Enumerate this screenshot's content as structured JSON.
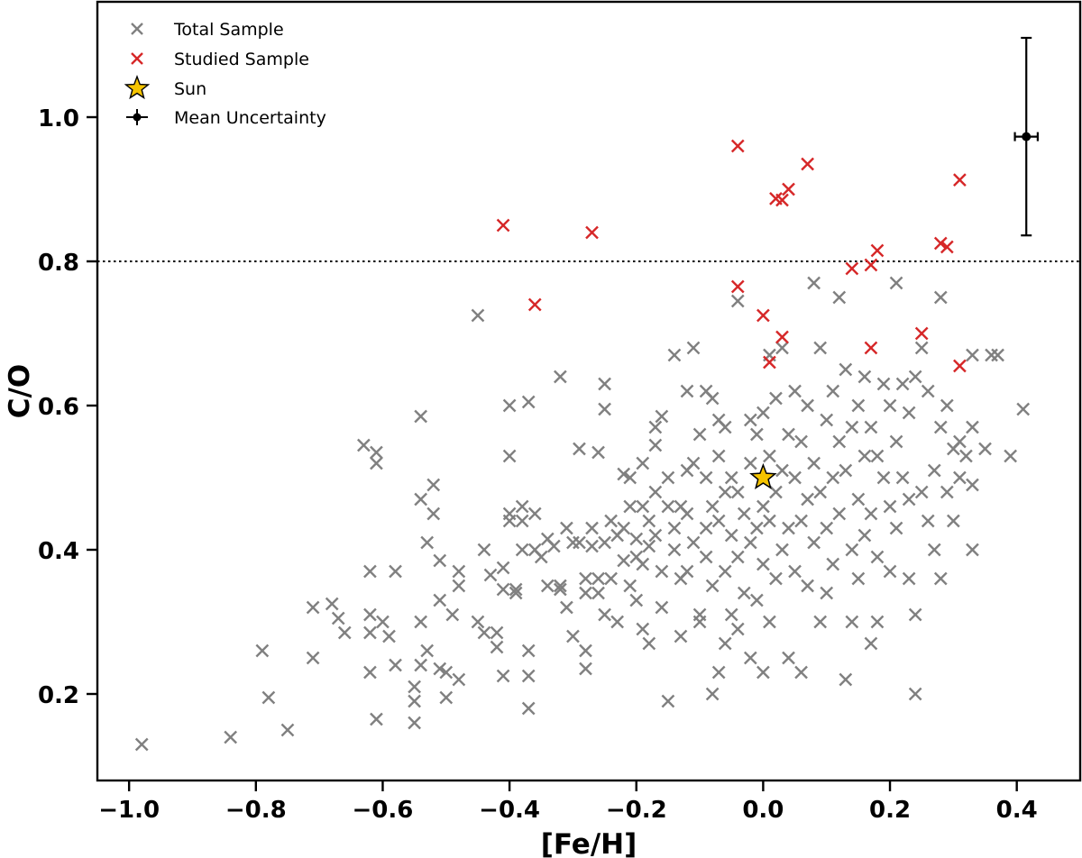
{
  "chart_data": {
    "type": "scatter",
    "xlabel": "[Fe/H]",
    "ylabel": "C/O",
    "xlim": [
      -1.05,
      0.5
    ],
    "ylim": [
      0.08,
      1.16
    ],
    "xticks": [
      -1.0,
      -0.8,
      -0.6,
      -0.4,
      -0.2,
      0.0,
      0.2,
      0.4
    ],
    "xtick_labels": [
      "−1.0",
      "−0.8",
      "−0.6",
      "−0.4",
      "−0.2",
      "0.0",
      "0.2",
      "0.4"
    ],
    "yticks": [
      0.2,
      0.4,
      0.6,
      0.8,
      1.0
    ],
    "ytick_labels": [
      "0.2",
      "0.4",
      "0.6",
      "0.8",
      "1.0"
    ],
    "grid": false,
    "legend_position": "top-left",
    "reference_line": {
      "y": 0.8,
      "style": "dotted"
    },
    "series": [
      {
        "name": "Total Sample",
        "marker": "x",
        "color": "#808080",
        "points": [
          [
            -0.98,
            0.13
          ],
          [
            -0.84,
            0.14
          ],
          [
            -0.79,
            0.26
          ],
          [
            -0.78,
            0.195
          ],
          [
            -0.75,
            0.15
          ],
          [
            -0.71,
            0.32
          ],
          [
            -0.71,
            0.25
          ],
          [
            -0.68,
            0.325
          ],
          [
            -0.67,
            0.305
          ],
          [
            -0.66,
            0.285
          ],
          [
            -0.63,
            0.545
          ],
          [
            -0.62,
            0.37
          ],
          [
            -0.62,
            0.31
          ],
          [
            -0.62,
            0.285
          ],
          [
            -0.62,
            0.23
          ],
          [
            -0.61,
            0.535
          ],
          [
            -0.61,
            0.52
          ],
          [
            -0.61,
            0.165
          ],
          [
            -0.6,
            0.3
          ],
          [
            -0.59,
            0.28
          ],
          [
            -0.58,
            0.37
          ],
          [
            -0.58,
            0.24
          ],
          [
            -0.55,
            0.19
          ],
          [
            -0.55,
            0.16
          ],
          [
            -0.55,
            0.21
          ],
          [
            -0.54,
            0.585
          ],
          [
            -0.54,
            0.47
          ],
          [
            -0.54,
            0.3
          ],
          [
            -0.54,
            0.24
          ],
          [
            -0.53,
            0.41
          ],
          [
            -0.53,
            0.26
          ],
          [
            -0.52,
            0.49
          ],
          [
            -0.52,
            0.45
          ],
          [
            -0.51,
            0.385
          ],
          [
            -0.51,
            0.33
          ],
          [
            -0.51,
            0.235
          ],
          [
            -0.5,
            0.23
          ],
          [
            -0.5,
            0.195
          ],
          [
            -0.49,
            0.31
          ],
          [
            -0.48,
            0.37
          ],
          [
            -0.48,
            0.35
          ],
          [
            -0.48,
            0.22
          ],
          [
            -0.45,
            0.725
          ],
          [
            -0.45,
            0.3
          ],
          [
            -0.44,
            0.4
          ],
          [
            -0.44,
            0.285
          ],
          [
            -0.43,
            0.365
          ],
          [
            -0.42,
            0.285
          ],
          [
            -0.42,
            0.265
          ],
          [
            -0.41,
            0.375
          ],
          [
            -0.41,
            0.345
          ],
          [
            -0.41,
            0.225
          ],
          [
            -0.4,
            0.6
          ],
          [
            -0.4,
            0.53
          ],
          [
            -0.4,
            0.45
          ],
          [
            -0.4,
            0.44
          ],
          [
            -0.39,
            0.345
          ],
          [
            -0.39,
            0.34
          ],
          [
            -0.38,
            0.46
          ],
          [
            -0.38,
            0.44
          ],
          [
            -0.38,
            0.4
          ],
          [
            -0.37,
            0.605
          ],
          [
            -0.37,
            0.26
          ],
          [
            -0.37,
            0.225
          ],
          [
            -0.37,
            0.18
          ],
          [
            -0.36,
            0.45
          ],
          [
            -0.36,
            0.4
          ],
          [
            -0.35,
            0.39
          ],
          [
            -0.34,
            0.415
          ],
          [
            -0.34,
            0.35
          ],
          [
            -0.33,
            0.405
          ],
          [
            -0.32,
            0.64
          ],
          [
            -0.32,
            0.35
          ],
          [
            -0.32,
            0.345
          ],
          [
            -0.31,
            0.43
          ],
          [
            -0.31,
            0.32
          ],
          [
            -0.3,
            0.41
          ],
          [
            -0.3,
            0.28
          ],
          [
            -0.29,
            0.54
          ],
          [
            -0.29,
            0.41
          ],
          [
            -0.28,
            0.36
          ],
          [
            -0.28,
            0.34
          ],
          [
            -0.28,
            0.26
          ],
          [
            -0.28,
            0.235
          ],
          [
            -0.27,
            0.43
          ],
          [
            -0.27,
            0.405
          ],
          [
            -0.26,
            0.535
          ],
          [
            -0.26,
            0.36
          ],
          [
            -0.26,
            0.34
          ],
          [
            -0.25,
            0.63
          ],
          [
            -0.25,
            0.595
          ],
          [
            -0.25,
            0.41
          ],
          [
            -0.25,
            0.31
          ],
          [
            -0.24,
            0.44
          ],
          [
            -0.24,
            0.36
          ],
          [
            -0.23,
            0.42
          ],
          [
            -0.23,
            0.3
          ],
          [
            -0.22,
            0.505
          ],
          [
            -0.22,
            0.43
          ],
          [
            -0.22,
            0.385
          ],
          [
            -0.21,
            0.5
          ],
          [
            -0.21,
            0.46
          ],
          [
            -0.21,
            0.35
          ],
          [
            -0.2,
            0.415
          ],
          [
            -0.2,
            0.39
          ],
          [
            -0.2,
            0.33
          ],
          [
            -0.19,
            0.52
          ],
          [
            -0.19,
            0.46
          ],
          [
            -0.19,
            0.38
          ],
          [
            -0.19,
            0.29
          ],
          [
            -0.18,
            0.44
          ],
          [
            -0.18,
            0.405
          ],
          [
            -0.18,
            0.27
          ],
          [
            -0.17,
            0.57
          ],
          [
            -0.17,
            0.545
          ],
          [
            -0.17,
            0.48
          ],
          [
            -0.17,
            0.42
          ],
          [
            -0.16,
            0.585
          ],
          [
            -0.16,
            0.37
          ],
          [
            -0.16,
            0.32
          ],
          [
            -0.15,
            0.5
          ],
          [
            -0.15,
            0.46
          ],
          [
            -0.15,
            0.19
          ],
          [
            -0.14,
            0.67
          ],
          [
            -0.14,
            0.43
          ],
          [
            -0.14,
            0.4
          ],
          [
            -0.13,
            0.46
          ],
          [
            -0.13,
            0.36
          ],
          [
            -0.13,
            0.28
          ],
          [
            -0.12,
            0.62
          ],
          [
            -0.12,
            0.51
          ],
          [
            -0.12,
            0.45
          ],
          [
            -0.12,
            0.37
          ],
          [
            -0.11,
            0.68
          ],
          [
            -0.11,
            0.52
          ],
          [
            -0.11,
            0.41
          ],
          [
            -0.1,
            0.56
          ],
          [
            -0.1,
            0.31
          ],
          [
            -0.1,
            0.3
          ],
          [
            -0.09,
            0.62
          ],
          [
            -0.09,
            0.5
          ],
          [
            -0.09,
            0.43
          ],
          [
            -0.09,
            0.39
          ],
          [
            -0.08,
            0.61
          ],
          [
            -0.08,
            0.46
          ],
          [
            -0.08,
            0.35
          ],
          [
            -0.08,
            0.2
          ],
          [
            -0.07,
            0.58
          ],
          [
            -0.07,
            0.53
          ],
          [
            -0.07,
            0.44
          ],
          [
            -0.07,
            0.23
          ],
          [
            -0.06,
            0.57
          ],
          [
            -0.06,
            0.48
          ],
          [
            -0.06,
            0.37
          ],
          [
            -0.06,
            0.27
          ],
          [
            -0.05,
            0.5
          ],
          [
            -0.05,
            0.42
          ],
          [
            -0.05,
            0.31
          ],
          [
            -0.04,
            0.745
          ],
          [
            -0.04,
            0.48
          ],
          [
            -0.04,
            0.39
          ],
          [
            -0.04,
            0.29
          ],
          [
            -0.03,
            0.45
          ],
          [
            -0.03,
            0.34
          ],
          [
            -0.02,
            0.58
          ],
          [
            -0.02,
            0.52
          ],
          [
            -0.02,
            0.41
          ],
          [
            -0.02,
            0.25
          ],
          [
            -0.01,
            0.56
          ],
          [
            -0.01,
            0.43
          ],
          [
            -0.01,
            0.33
          ],
          [
            0.0,
            0.59
          ],
          [
            0.0,
            0.46
          ],
          [
            0.0,
            0.38
          ],
          [
            0.0,
            0.23
          ],
          [
            0.01,
            0.67
          ],
          [
            0.01,
            0.53
          ],
          [
            0.01,
            0.44
          ],
          [
            0.01,
            0.3
          ],
          [
            0.02,
            0.61
          ],
          [
            0.02,
            0.48
          ],
          [
            0.02,
            0.36
          ],
          [
            0.03,
            0.68
          ],
          [
            0.03,
            0.51
          ],
          [
            0.03,
            0.4
          ],
          [
            0.04,
            0.56
          ],
          [
            0.04,
            0.43
          ],
          [
            0.04,
            0.25
          ],
          [
            0.05,
            0.62
          ],
          [
            0.05,
            0.5
          ],
          [
            0.05,
            0.37
          ],
          [
            0.06,
            0.55
          ],
          [
            0.06,
            0.44
          ],
          [
            0.06,
            0.23
          ],
          [
            0.07,
            0.6
          ],
          [
            0.07,
            0.47
          ],
          [
            0.07,
            0.35
          ],
          [
            0.08,
            0.77
          ],
          [
            0.08,
            0.52
          ],
          [
            0.08,
            0.41
          ],
          [
            0.09,
            0.68
          ],
          [
            0.09,
            0.48
          ],
          [
            0.09,
            0.3
          ],
          [
            0.1,
            0.58
          ],
          [
            0.1,
            0.43
          ],
          [
            0.1,
            0.34
          ],
          [
            0.11,
            0.62
          ],
          [
            0.11,
            0.5
          ],
          [
            0.11,
            0.38
          ],
          [
            0.12,
            0.75
          ],
          [
            0.12,
            0.55
          ],
          [
            0.12,
            0.45
          ],
          [
            0.13,
            0.65
          ],
          [
            0.13,
            0.51
          ],
          [
            0.13,
            0.22
          ],
          [
            0.14,
            0.57
          ],
          [
            0.14,
            0.4
          ],
          [
            0.14,
            0.3
          ],
          [
            0.15,
            0.6
          ],
          [
            0.15,
            0.47
          ],
          [
            0.15,
            0.36
          ],
          [
            0.16,
            0.64
          ],
          [
            0.16,
            0.53
          ],
          [
            0.16,
            0.42
          ],
          [
            0.17,
            0.57
          ],
          [
            0.17,
            0.45
          ],
          [
            0.17,
            0.27
          ],
          [
            0.18,
            0.53
          ],
          [
            0.18,
            0.39
          ],
          [
            0.18,
            0.3
          ],
          [
            0.19,
            0.63
          ],
          [
            0.19,
            0.5
          ],
          [
            0.2,
            0.6
          ],
          [
            0.2,
            0.46
          ],
          [
            0.2,
            0.37
          ],
          [
            0.21,
            0.77
          ],
          [
            0.21,
            0.55
          ],
          [
            0.21,
            0.43
          ],
          [
            0.22,
            0.63
          ],
          [
            0.22,
            0.5
          ],
          [
            0.23,
            0.59
          ],
          [
            0.23,
            0.47
          ],
          [
            0.23,
            0.36
          ],
          [
            0.24,
            0.64
          ],
          [
            0.24,
            0.31
          ],
          [
            0.24,
            0.2
          ],
          [
            0.25,
            0.68
          ],
          [
            0.25,
            0.48
          ],
          [
            0.26,
            0.62
          ],
          [
            0.26,
            0.44
          ],
          [
            0.27,
            0.51
          ],
          [
            0.27,
            0.4
          ],
          [
            0.28,
            0.75
          ],
          [
            0.28,
            0.57
          ],
          [
            0.28,
            0.36
          ],
          [
            0.29,
            0.6
          ],
          [
            0.29,
            0.48
          ],
          [
            0.3,
            0.54
          ],
          [
            0.3,
            0.44
          ],
          [
            0.31,
            0.55
          ],
          [
            0.31,
            0.5
          ],
          [
            0.32,
            0.53
          ],
          [
            0.33,
            0.67
          ],
          [
            0.33,
            0.57
          ],
          [
            0.33,
            0.49
          ],
          [
            0.33,
            0.4
          ],
          [
            0.35,
            0.54
          ],
          [
            0.36,
            0.67
          ],
          [
            0.37,
            0.67
          ],
          [
            0.39,
            0.53
          ],
          [
            0.41,
            0.595
          ]
        ]
      },
      {
        "name": "Studied Sample",
        "marker": "x",
        "color": "#d62728",
        "points": [
          [
            -0.41,
            0.85
          ],
          [
            -0.36,
            0.74
          ],
          [
            -0.27,
            0.84
          ],
          [
            -0.04,
            0.96
          ],
          [
            -0.04,
            0.765
          ],
          [
            0.0,
            0.725
          ],
          [
            0.01,
            0.66
          ],
          [
            0.02,
            0.887
          ],
          [
            0.03,
            0.885
          ],
          [
            0.03,
            0.695
          ],
          [
            0.04,
            0.9
          ],
          [
            0.07,
            0.935
          ],
          [
            0.14,
            0.79
          ],
          [
            0.17,
            0.795
          ],
          [
            0.17,
            0.68
          ],
          [
            0.18,
            0.815
          ],
          [
            0.25,
            0.7
          ],
          [
            0.28,
            0.825
          ],
          [
            0.29,
            0.82
          ],
          [
            0.31,
            0.913
          ],
          [
            0.31,
            0.655
          ]
        ]
      },
      {
        "name": "Sun",
        "marker": "star",
        "color": "#f5c400",
        "points": [
          [
            0.0,
            0.5
          ]
        ]
      },
      {
        "name": "Mean Uncertainty",
        "marker": "errorbar",
        "color": "#000000",
        "points": [
          [
            0.415,
            0.973
          ]
        ],
        "xerr": 0.018,
        "yerr": 0.137
      }
    ]
  }
}
